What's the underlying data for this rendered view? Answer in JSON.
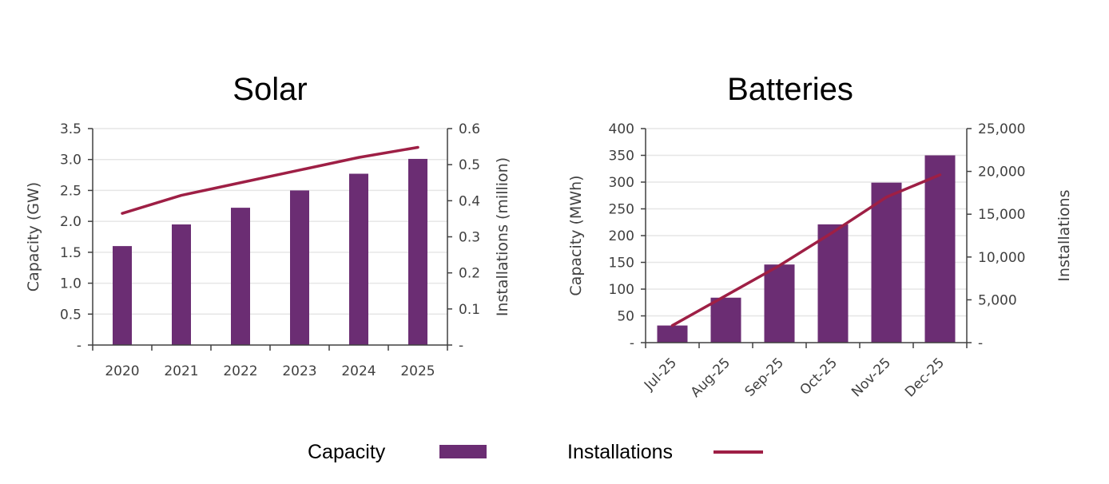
{
  "colors": {
    "capacity": "#6B2D73",
    "installations": "#9E1F45",
    "axis": "#404040",
    "grid": "#e6e6e6"
  },
  "legend": {
    "capacity": "Capacity",
    "installations": "Installations",
    "placement": "bottom"
  },
  "chart_data": [
    {
      "type": "bar+line",
      "title": "Solar",
      "categories": [
        "2020",
        "2021",
        "2022",
        "2023",
        "2024",
        "2025"
      ],
      "ylabel": "Capacity (GW)",
      "y2label": "Installations (million)",
      "ylim": [
        0,
        3.5
      ],
      "y2lim": [
        0,
        0.6
      ],
      "yticks": [
        "-",
        "0.5",
        "1.0",
        "1.5",
        "2.0",
        "2.5",
        "3.0",
        "3.5"
      ],
      "y2ticks": [
        "-",
        "0.1",
        "0.2",
        "0.3",
        "0.4",
        "0.5",
        "0.6"
      ],
      "grid": true,
      "series": [
        {
          "name": "Capacity",
          "type": "bar",
          "axis": "left",
          "values": [
            1.6,
            1.95,
            2.22,
            2.5,
            2.77,
            3.01
          ]
        },
        {
          "name": "Installations",
          "type": "line",
          "axis": "right",
          "values": [
            0.365,
            0.415,
            0.45,
            0.485,
            0.52,
            0.548
          ]
        }
      ]
    },
    {
      "type": "bar+line",
      "title": "Batteries",
      "categories": [
        "Jul-25",
        "Aug-25",
        "Sep-25",
        "Oct-25",
        "Nov-25",
        "Dec-25"
      ],
      "ylabel": "Capacity (MWh)",
      "y2label": "Installations",
      "ylim": [
        0,
        400
      ],
      "y2lim": [
        0,
        25000
      ],
      "yticks": [
        "-",
        "50",
        "100",
        "150",
        "200",
        "250",
        "300",
        "350",
        "400"
      ],
      "y2ticks": [
        "-",
        "5,000",
        "10,000",
        "15,000",
        "20,000",
        "25,000"
      ],
      "grid": true,
      "series": [
        {
          "name": "Capacity",
          "type": "bar",
          "axis": "left",
          "values": [
            32,
            84,
            146,
            221,
            299,
            350
          ]
        },
        {
          "name": "Installations",
          "type": "line",
          "axis": "right",
          "values": [
            2000,
            5500,
            9000,
            12900,
            17000,
            19600
          ]
        }
      ]
    }
  ]
}
